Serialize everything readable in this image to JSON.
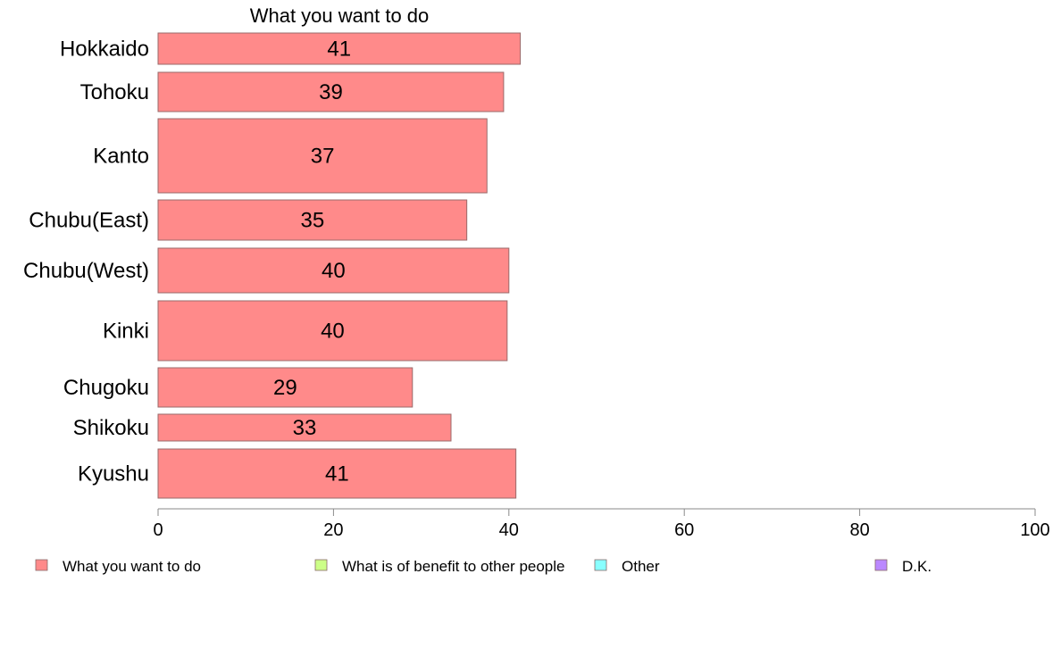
{
  "chart_data": {
    "type": "bar",
    "orientation": "horizontal",
    "title": "What you want to do",
    "categories": [
      "Hokkaido",
      "Tohoku",
      "Kanto",
      "Chubu(East)",
      "Chubu(West)",
      "Kinki",
      "Chugoku",
      "Shikoku",
      "Kyushu"
    ],
    "series": [
      {
        "name": "What you want to do",
        "color": "#ff8a8a",
        "values": [
          41.3,
          39.4,
          37.5,
          35.2,
          40.0,
          39.8,
          29.0,
          33.4,
          40.8
        ],
        "labels": [
          "41",
          "39",
          "37",
          "35",
          "40",
          "40",
          "29",
          "33",
          "41"
        ]
      }
    ],
    "xlim": [
      0,
      100
    ],
    "xticks": [
      0,
      20,
      40,
      60,
      80,
      100
    ],
    "xtick_labels": [
      "0",
      "20",
      "40",
      "60",
      "80",
      "100"
    ],
    "grid": false,
    "legend": {
      "position": "bottom",
      "items": [
        {
          "label": "What you want to do",
          "color": "#ff8a8a"
        },
        {
          "label": "What is of benefit to other people",
          "color": "#ccff88"
        },
        {
          "label": "Other",
          "color": "#88ffff"
        },
        {
          "label": "D.K.",
          "color": "#bb88ff"
        }
      ]
    }
  }
}
